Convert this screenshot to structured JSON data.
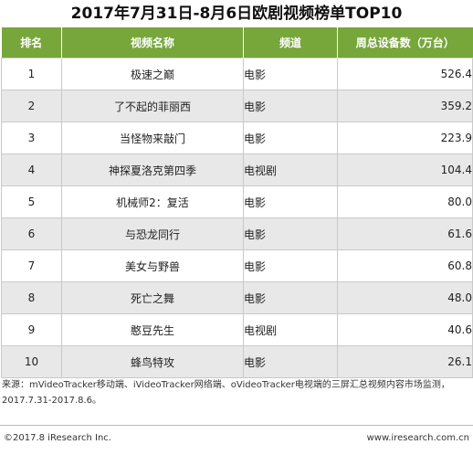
{
  "chart_data": {
    "type": "table",
    "title": "2017年7月31日-8月6日欧剧视频榜单TOP10",
    "columns": [
      "排名",
      "视频名称",
      "频道",
      "周总设备数（万台）"
    ],
    "rows": [
      {
        "rank": "1",
        "name": "极速之巅",
        "channel": "电影",
        "value": "526.4"
      },
      {
        "rank": "2",
        "name": "了不起的菲丽西",
        "channel": "电影",
        "value": "359.2"
      },
      {
        "rank": "3",
        "name": "当怪物来敲门",
        "channel": "电影",
        "value": "223.9"
      },
      {
        "rank": "4",
        "name": "神探夏洛克第四季",
        "channel": "电视剧",
        "value": "104.4"
      },
      {
        "rank": "5",
        "name": "机械师2：复活",
        "channel": "电影",
        "value": "80.0"
      },
      {
        "rank": "6",
        "name": "与恐龙同行",
        "channel": "电影",
        "value": "61.6"
      },
      {
        "rank": "7",
        "name": "美女与野兽",
        "channel": "电影",
        "value": "60.8"
      },
      {
        "rank": "8",
        "name": "死亡之舞",
        "channel": "电影",
        "value": "48.0"
      },
      {
        "rank": "9",
        "name": "憨豆先生",
        "channel": "电视剧",
        "value": "40.6"
      },
      {
        "rank": "10",
        "name": "蜂鸟特攻",
        "channel": "电影",
        "value": "26.1"
      }
    ]
  },
  "source_line1": "来源：mVideoTracker移动端、iVideoTracker网络端、oVideoTracker电视端的三屏汇总视频内容市场监测，",
  "source_line2": "2017.7.31-2017.8.6。",
  "copyright": "©2017.8 iResearch Inc.",
  "website": "www.iresearch.com.cn",
  "colors": {
    "header_bg": "#77a63b",
    "alt_row_bg": "#e8e8e8",
    "border": "#c9c9c9"
  }
}
